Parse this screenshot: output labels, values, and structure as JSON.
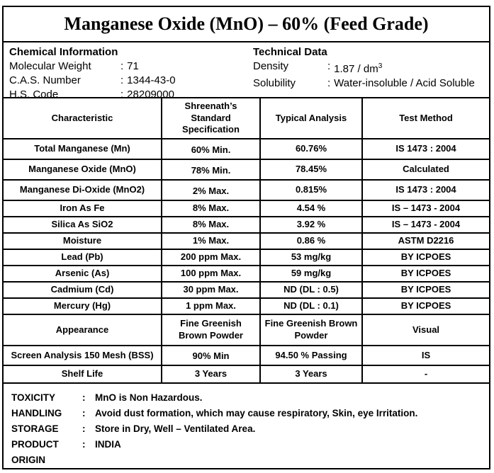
{
  "title": "Manganese Oxide (MnO) – 60% (Feed Grade)",
  "chemical_info": {
    "heading": "Chemical Information",
    "rows": [
      {
        "label": "Molecular Weight",
        "colon": ":",
        "value": "71"
      },
      {
        "label": "C.A.S. Number",
        "colon": ":",
        "value": "1344-43-0"
      },
      {
        "label": "H.S. Code",
        "colon": ":",
        "value": "28209000"
      }
    ]
  },
  "technical_data": {
    "heading": "Technical Data",
    "rows": [
      {
        "label": "Density",
        "colon": ":",
        "value": "1.87 / dm",
        "sup": "3"
      },
      {
        "label": "Solubility",
        "colon": ":",
        "value": "Water-insoluble / Acid Soluble"
      }
    ]
  },
  "spec_table": {
    "headers": [
      "Characteristic",
      "Shreenath’s Standard Specification",
      "Typical Analysis",
      "Test Method"
    ],
    "rows": [
      {
        "characteristic": "Total Manganese (Mn)",
        "spec": "60% Min.",
        "typical": "60.76%",
        "method": "IS 1473 : 2004"
      },
      {
        "characteristic": "Manganese Oxide (MnO)",
        "spec": "78% Min.",
        "typical": "78.45%",
        "method": "Calculated"
      },
      {
        "characteristic": "Manganese Di-Oxide (MnO2)",
        "spec": "2% Max.",
        "typical": "0.815%",
        "method": "IS 1473 : 2004"
      },
      {
        "characteristic": "Iron As Fe",
        "spec": "8% Max.",
        "typical": "4.54 %",
        "method": "IS – 1473 - 2004"
      },
      {
        "characteristic": "Silica As SiO2",
        "spec": "8% Max.",
        "typical": "3.92 %",
        "method": "IS – 1473 - 2004"
      },
      {
        "characteristic": "Moisture",
        "spec": "1% Max.",
        "typical": "0.86 %",
        "method": "ASTM D2216"
      },
      {
        "characteristic": "Lead (Pb)",
        "spec": "200 ppm Max.",
        "typical": "53 mg/kg",
        "method": "BY ICPOES"
      },
      {
        "characteristic": "Arsenic (As)",
        "spec": "100 ppm Max.",
        "typical": "59 mg/kg",
        "method": "BY ICPOES"
      },
      {
        "characteristic": "Cadmium (Cd)",
        "spec": "30 ppm Max.",
        "typical": "ND (DL : 0.5)",
        "method": "BY ICPOES"
      },
      {
        "characteristic": "Mercury (Hg)",
        "spec": "1 ppm Max.",
        "typical": "ND (DL : 0.1)",
        "method": "BY ICPOES"
      },
      {
        "characteristic": "Appearance",
        "spec": "Fine Greenish Brown Powder",
        "typical": "Fine Greenish Brown Powder",
        "method": "Visual"
      },
      {
        "characteristic": "Screen Analysis 150 Mesh (BSS)",
        "spec": "90% Min",
        "typical": "94.50 % Passing",
        "method": "IS"
      },
      {
        "characteristic": "Shelf Life",
        "spec": "3 Years",
        "typical": "3 Years",
        "method": "-"
      }
    ]
  },
  "footer": {
    "rows": [
      {
        "label": "TOXICITY",
        "colon": ":",
        "text": "MnO is Non Hazardous."
      },
      {
        "label": "HANDLING",
        "colon": ":",
        "text": "Avoid dust formation, which may cause respiratory, Skin, eye Irritation."
      },
      {
        "label": "STORAGE",
        "colon": ":",
        "text": "Store in Dry, Well – Ventilated Area."
      },
      {
        "label": "PRODUCT ORIGIN",
        "colon": ":",
        "text": "INDIA"
      }
    ]
  }
}
